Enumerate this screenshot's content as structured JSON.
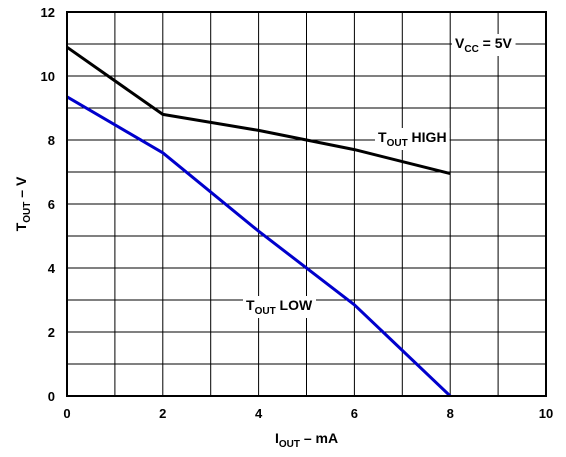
{
  "chart_data": {
    "type": "line",
    "xlabel": {
      "main": "I",
      "sub": "OUT",
      "rest": " – mA"
    },
    "ylabel": {
      "main": "T",
      "sub": "OUT",
      "rest": " – V"
    },
    "xlim": [
      0,
      10
    ],
    "ylim": [
      0,
      12
    ],
    "x_ticks": [
      0,
      2,
      4,
      6,
      8,
      10
    ],
    "y_ticks": [
      0,
      2,
      4,
      6,
      8,
      10,
      12
    ],
    "x_minor_step": 1,
    "y_minor_step": 1,
    "grid": true,
    "series": [
      {
        "label": {
          "main": "T",
          "sub": "OUT",
          "rest": " HIGH"
        },
        "color": "#000000",
        "points": [
          [
            0,
            10.9
          ],
          [
            2,
            8.8
          ],
          [
            4,
            8.3
          ],
          [
            6,
            7.7
          ],
          [
            8,
            6.95
          ]
        ]
      },
      {
        "label": {
          "main": "T",
          "sub": "OUT",
          "rest": " LOW"
        },
        "color": "#0000cc",
        "points": [
          [
            0,
            9.35
          ],
          [
            2,
            7.6
          ],
          [
            4,
            5.15
          ],
          [
            6,
            2.85
          ],
          [
            8,
            0.0
          ]
        ]
      }
    ],
    "condition": {
      "main": "V",
      "sub": "CC",
      "rest": " = 5V"
    }
  }
}
